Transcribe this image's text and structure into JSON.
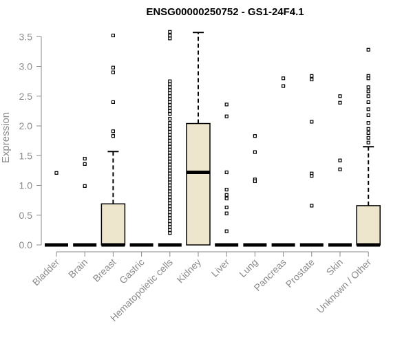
{
  "chart_data": {
    "type": "box",
    "title": "ENSG00000250752 - GS1-24F4.1",
    "ylabel": "Expression",
    "ylim": [
      0,
      3.6
    ],
    "yticks": [
      "0.0",
      "0.5",
      "1.0",
      "1.5",
      "2.0",
      "2.5",
      "3.0",
      "3.5"
    ],
    "grid": false,
    "colors": {
      "box_fill": "#ede6cc",
      "stroke": "#000000",
      "axis": "#8a8a8a",
      "text": "#8a8a8a"
    },
    "categories": [
      "Bladder",
      "Brain",
      "Breast",
      "Gastric",
      "Hematopoietic cells",
      "Kidney",
      "Liver",
      "Lung",
      "Pancreas",
      "Prostate",
      "Skin",
      "Unknown / Other"
    ],
    "boxes": [
      {
        "q1": 0,
        "median": 0,
        "q3": 0,
        "whisker_low": 0,
        "whisker_high": 0,
        "outliers": [
          1.21
        ]
      },
      {
        "q1": 0,
        "median": 0,
        "q3": 0,
        "whisker_low": 0,
        "whisker_high": 0,
        "outliers": [
          1.45,
          1.36,
          0.99
        ]
      },
      {
        "q1": 0,
        "median": 0,
        "q3": 0.69,
        "whisker_low": 0,
        "whisker_high": 1.57,
        "outliers": [
          3.52,
          2.98,
          2.9,
          2.4,
          1.91,
          1.83
        ]
      },
      {
        "q1": 0,
        "median": 0,
        "q3": 0,
        "whisker_low": 0,
        "whisker_high": 0,
        "outliers": []
      },
      {
        "q1": 0,
        "median": 0,
        "q3": 0,
        "whisker_low": 0,
        "whisker_high": 0,
        "outliers": [
          3.58,
          3.52,
          3.47,
          2.75,
          2.7,
          2.65,
          2.6,
          2.55,
          2.5,
          2.45,
          2.4,
          2.35,
          2.3,
          2.25,
          2.2,
          2.12,
          2.05,
          2.0,
          1.95,
          1.9,
          1.85,
          1.8,
          1.75,
          1.7,
          1.65,
          1.6,
          1.55,
          1.5,
          1.45,
          1.4,
          1.35,
          1.3,
          1.25,
          1.2,
          1.15,
          1.1,
          1.05,
          1.0,
          0.95,
          0.9,
          0.85,
          0.8,
          0.75,
          0.7,
          0.65,
          0.6,
          0.55,
          0.5,
          0.45,
          0.4,
          0.35,
          0.3,
          0.25,
          0.2
        ]
      },
      {
        "q1": 0,
        "median": 1.22,
        "q3": 2.04,
        "whisker_low": 0,
        "whisker_high": 3.57,
        "outliers": []
      },
      {
        "q1": 0,
        "median": 0,
        "q3": 0,
        "whisker_low": 0,
        "whisker_high": 0,
        "outliers": [
          2.36,
          2.16,
          1.22,
          0.93,
          0.84,
          0.78,
          0.63,
          0.53,
          0.23
        ]
      },
      {
        "q1": 0,
        "median": 0,
        "q3": 0,
        "whisker_low": 0,
        "whisker_high": 0,
        "outliers": [
          1.83,
          1.56,
          1.1,
          1.07
        ]
      },
      {
        "q1": 0,
        "median": 0,
        "q3": 0,
        "whisker_low": 0,
        "whisker_high": 0,
        "outliers": [
          2.8,
          2.67
        ]
      },
      {
        "q1": 0,
        "median": 0,
        "q3": 0,
        "whisker_low": 0,
        "whisker_high": 0,
        "outliers": [
          2.84,
          2.78,
          2.07,
          1.2,
          1.16,
          0.66
        ]
      },
      {
        "q1": 0,
        "median": 0,
        "q3": 0,
        "whisker_low": 0,
        "whisker_high": 0,
        "outliers": [
          2.5,
          2.39,
          1.42,
          1.27
        ]
      },
      {
        "q1": 0,
        "median": 0,
        "q3": 0.66,
        "whisker_low": 0,
        "whisker_high": 1.65,
        "outliers": [
          3.28,
          2.84,
          2.8,
          2.65,
          2.58,
          2.5,
          2.4,
          2.28,
          2.18,
          2.05,
          1.95,
          1.88,
          1.8,
          1.72
        ]
      }
    ]
  }
}
